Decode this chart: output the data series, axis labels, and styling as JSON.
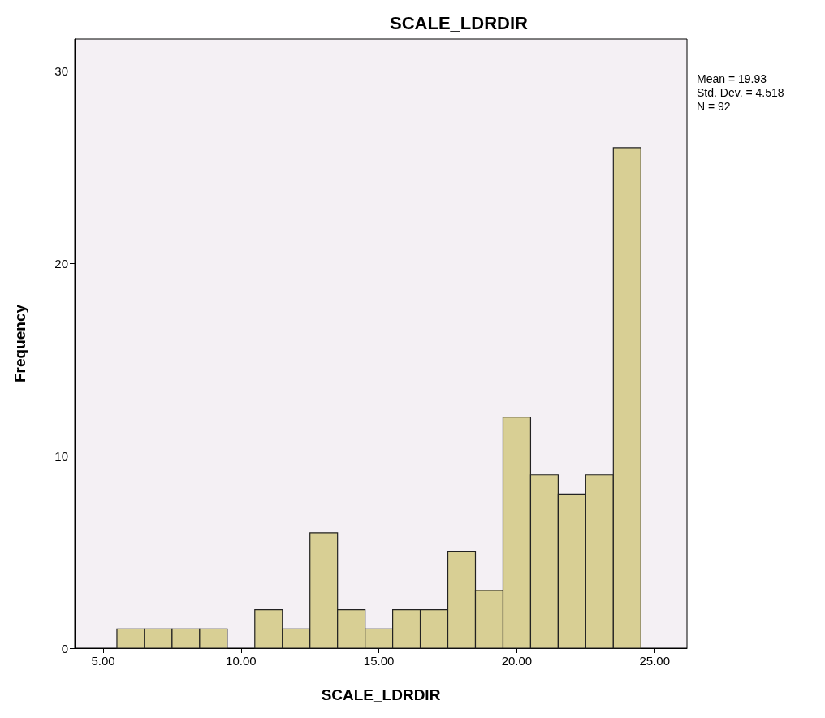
{
  "chart_data": {
    "type": "histogram",
    "title": "SCALE_LDRDIR",
    "xlabel": "SCALE_LDRDIR",
    "ylabel": "Frequency",
    "bins": [
      5.5,
      6.5,
      7.5,
      8.5,
      9.5,
      10.5,
      11.5,
      12.5,
      13.5,
      14.5,
      15.5,
      16.5,
      17.5,
      18.5,
      19.5,
      20.5,
      21.5,
      22.5,
      23.5,
      24.5
    ],
    "values": [
      1,
      1,
      1,
      1,
      0,
      2,
      1,
      6,
      2,
      1,
      2,
      2,
      5,
      3,
      12,
      9,
      8,
      9,
      26
    ],
    "color": "#d8cf94",
    "xlim": [
      3.97,
      26.17
    ],
    "xticks": [
      {
        "value": 5,
        "label": "5.00"
      },
      {
        "value": 10,
        "label": "10.00"
      },
      {
        "value": 15,
        "label": "15.00"
      },
      {
        "value": 20,
        "label": "20.00"
      },
      {
        "value": 25,
        "label": "25.00"
      }
    ],
    "ylim": [
      0,
      31.65
    ],
    "yticks": [
      0,
      10,
      20,
      30
    ],
    "grid": false,
    "annotations": [
      "Mean = 19.93",
      "Std. Dev. = 4.518",
      "N = 92"
    ]
  }
}
